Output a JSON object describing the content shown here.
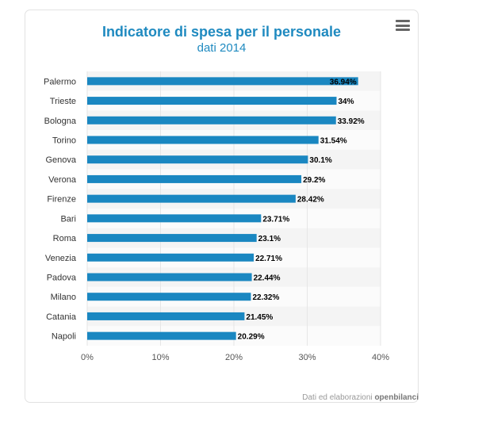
{
  "chart_data": {
    "type": "bar",
    "orientation": "horizontal",
    "title": "Indicatore di spesa per il personale",
    "subtitle": "dati 2014",
    "categories": [
      "Palermo",
      "Trieste",
      "Bologna",
      "Torino",
      "Genova",
      "Verona",
      "Firenze",
      "Bari",
      "Roma",
      "Venezia",
      "Padova",
      "Milano",
      "Catania",
      "Napoli"
    ],
    "values": [
      36.94,
      34,
      33.92,
      31.54,
      30.1,
      29.2,
      28.42,
      23.71,
      23.1,
      22.71,
      22.44,
      22.32,
      21.45,
      20.29
    ],
    "data_labels": [
      "36.94%",
      "34%",
      "33.92%",
      "31.54%",
      "30.1%",
      "29.2%",
      "28.42%",
      "23.71%",
      "23.1%",
      "22.71%",
      "22.44%",
      "22.32%",
      "21.45%",
      "20.29%"
    ],
    "xlim": [
      0,
      40
    ],
    "x_ticks": [
      "0%",
      "10%",
      "20%",
      "30%",
      "40%"
    ],
    "grid": true,
    "bar_color": "#1a87c1"
  },
  "menu_icon": "hamburger-menu-icon",
  "credit": {
    "prefix": "Dati ed elaborazioni",
    "brand": "openbilanci"
  }
}
